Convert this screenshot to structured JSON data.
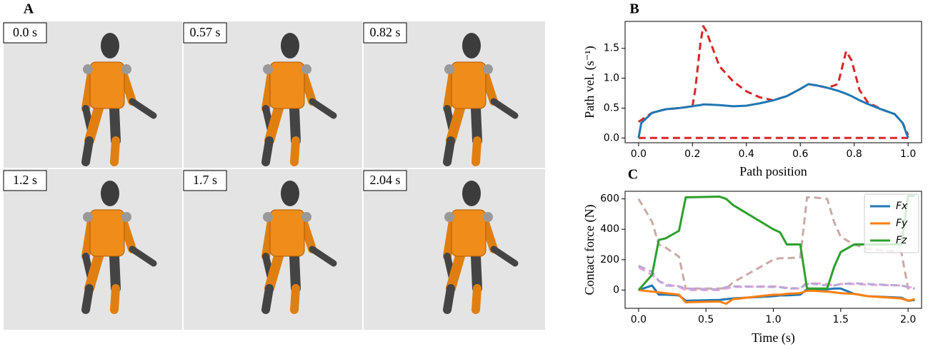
{
  "panels": {
    "a": "A",
    "b": "B",
    "c": "C"
  },
  "frames": [
    "0.0 s",
    "0.57 s",
    "0.82 s",
    "1.2 s",
    "1.7 s",
    "2.04 s"
  ],
  "chart_data": [
    {
      "type": "line",
      "xlabel": "Path position",
      "ylabel": "Path vel. (s⁻¹)",
      "x": [
        0,
        0.01,
        0.05,
        0.1,
        0.15,
        0.2,
        0.21,
        0.23,
        0.24,
        0.25,
        0.3,
        0.35,
        0.4,
        0.45,
        0.5,
        0.55,
        0.6,
        0.63,
        0.66,
        0.7,
        0.74,
        0.77,
        0.79,
        0.82,
        0.85,
        0.9,
        0.95,
        0.98,
        1.0
      ],
      "xlim": [
        -0.05,
        1.05
      ],
      "xticks": [
        {
          "value": 0,
          "label": "0.0"
        },
        {
          "value": 0.2,
          "label": "0.2"
        },
        {
          "value": 0.4,
          "label": "0.4"
        },
        {
          "value": 0.6,
          "label": "0.6"
        },
        {
          "value": 0.8,
          "label": "0.8"
        },
        {
          "value": 1,
          "label": "1.0"
        }
      ],
      "ylim": [
        -0.08,
        1.95
      ],
      "yticks": [
        {
          "value": 0,
          "label": "0.0"
        },
        {
          "value": 0.5,
          "label": "0.5"
        },
        {
          "value": 1,
          "label": "1.0"
        },
        {
          "value": 1.5,
          "label": "1.5"
        }
      ],
      "series": [
        {
          "color": "#d62728",
          "style": "dashed",
          "values": [
            0.27,
            0.3,
            0.42,
            0.48,
            0.5,
            0.53,
            0.8,
            1.6,
            1.87,
            1.8,
            1.2,
            0.95,
            0.78,
            0.68,
            0.63,
            0.7,
            0.82,
            0.9,
            0.88,
            0.84,
            0.9,
            1.45,
            1.3,
            0.8,
            0.6,
            0.48,
            0.4,
            0.25,
            0.05
          ]
        },
        {
          "color": "#d62728",
          "style": "dashed",
          "values": [
            0,
            0,
            0,
            0,
            0,
            0,
            0,
            0,
            0,
            0,
            0,
            0,
            0,
            0,
            0,
            0,
            0,
            0,
            0,
            0,
            0,
            0,
            0,
            0,
            0,
            0,
            0,
            0,
            0
          ]
        },
        {
          "color": "#1f77b4",
          "style": "solid",
          "values": [
            0,
            0.25,
            0.42,
            0.48,
            0.5,
            0.53,
            0.54,
            0.55,
            0.56,
            0.56,
            0.55,
            0.53,
            0.54,
            0.58,
            0.63,
            0.7,
            0.82,
            0.9,
            0.88,
            0.84,
            0.79,
            0.74,
            0.7,
            0.63,
            0.57,
            0.48,
            0.4,
            0.25,
            0
          ]
        }
      ]
    },
    {
      "type": "line",
      "xlabel": "Time (s)",
      "ylabel": "Contact force (N)",
      "legend": "upper right",
      "x": [
        0,
        0.1,
        0.15,
        0.2,
        0.3,
        0.35,
        0.6,
        0.65,
        0.7,
        1.0,
        1.05,
        1.1,
        1.2,
        1.25,
        1.3,
        1.4,
        1.45,
        1.5,
        1.6,
        1.7,
        1.95,
        2.0,
        2.05
      ],
      "xlim": [
        -0.1,
        2.1
      ],
      "xticks": [
        {
          "value": 0,
          "label": "0.0"
        },
        {
          "value": 0.5,
          "label": "0.5"
        },
        {
          "value": 1,
          "label": "1.0"
        },
        {
          "value": 1.5,
          "label": "1.5"
        },
        {
          "value": 2,
          "label": "2.0"
        }
      ],
      "ylim": [
        -120,
        650
      ],
      "yticks": [
        0,
        200,
        400,
        600
      ],
      "series": [
        {
          "color": "#c9aaa5",
          "style": "dashed",
          "values": [
            600,
            450,
            300,
            280,
            220,
            10,
            10,
            10,
            50,
            200,
            210,
            210,
            215,
            610,
            610,
            600,
            450,
            350,
            300,
            270,
            250,
            10,
            10
          ]
        },
        {
          "color": "#e8a6d6",
          "style": "dashed",
          "values": [
            150,
            100,
            60,
            40,
            20,
            0,
            0,
            10,
            20,
            25,
            20,
            15,
            10,
            40,
            45,
            40,
            30,
            40,
            40,
            35,
            30,
            20,
            15
          ]
        },
        {
          "color": "#b9a8d8",
          "style": "dashed",
          "values": [
            160,
            120,
            60,
            30,
            25,
            10,
            5,
            20,
            25,
            20,
            20,
            10,
            10,
            50,
            40,
            30,
            30,
            40,
            45,
            40,
            30,
            20,
            10
          ]
        },
        {
          "name": "Fx",
          "color": "#1f77b4",
          "style": "solid",
          "values": [
            0,
            30,
            -30,
            -30,
            -35,
            -70,
            -65,
            -60,
            -55,
            -40,
            -35,
            -35,
            -30,
            5,
            5,
            5,
            10,
            10,
            -25,
            -40,
            -50,
            -70,
            -65
          ]
        },
        {
          "name": "Fy",
          "color": "#ff7f0e",
          "style": "solid",
          "values": [
            0,
            -10,
            -15,
            -20,
            -30,
            -80,
            -75,
            -90,
            -60,
            -30,
            -30,
            -25,
            -20,
            -5,
            -5,
            -10,
            -15,
            -20,
            -25,
            -40,
            -55,
            -70,
            -60
          ]
        },
        {
          "name": "Fz",
          "color": "#2ca02c",
          "style": "solid",
          "values": [
            0,
            100,
            330,
            340,
            390,
            610,
            615,
            600,
            560,
            400,
            380,
            300,
            300,
            10,
            10,
            10,
            150,
            250,
            300,
            300,
            300,
            620,
            620
          ]
        }
      ]
    }
  ]
}
